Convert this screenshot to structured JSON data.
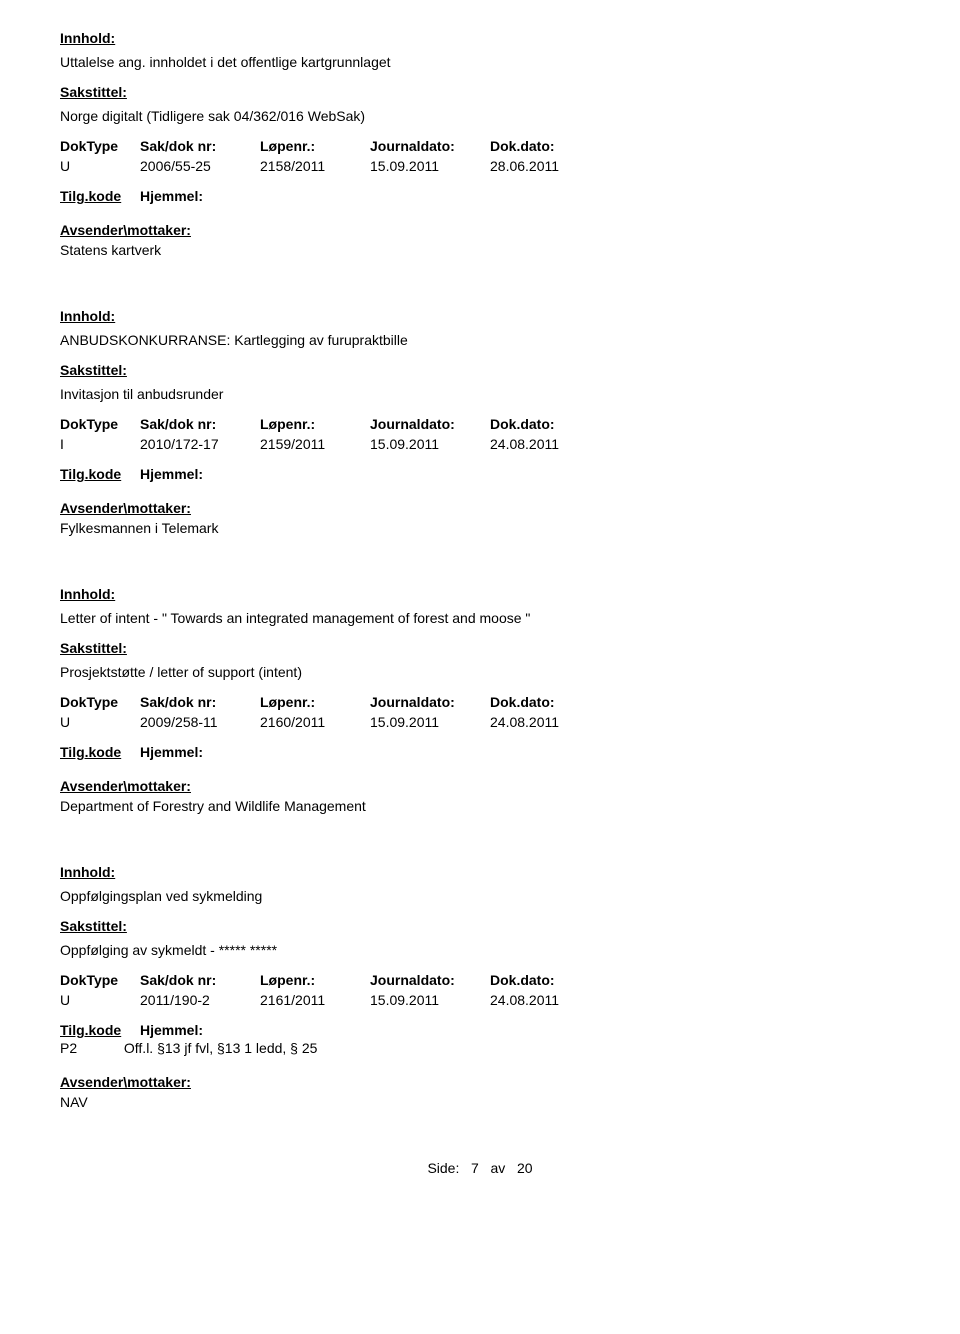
{
  "labels": {
    "innhold": "Innhold:",
    "sakstittel": "Sakstittel:",
    "doktype": "DokType",
    "sakdok": "Sak/dok nr:",
    "lopenr": "Løpenr.:",
    "journaldato": "Journaldato:",
    "dokdato": "Dok.dato:",
    "tilgkode": "Tilg.kode",
    "hjemmel": "Hjemmel:",
    "avsender": "Avsender\\mottaker:"
  },
  "entries": [
    {
      "innhold_text": "Uttalelse ang. innholdet i det offentlige kartgrunnlaget",
      "sakstittel_text": "Norge digitalt (Tidligere sak 04/362/016 WebSak)",
      "doktype": "U",
      "sakdok": "2006/55-25",
      "lopenr": "2158/2011",
      "journaldato": "15.09.2011",
      "dokdato": "28.06.2011",
      "ref": "",
      "avsender_text": "Statens kartverk"
    },
    {
      "innhold_text": "ANBUDSKONKURRANSE: Kartlegging av furupraktbille",
      "sakstittel_text": "Invitasjon til anbudsrunder",
      "doktype": "I",
      "sakdok": "2010/172-17",
      "lopenr": "2159/2011",
      "journaldato": "15.09.2011",
      "dokdato": "24.08.2011",
      "ref": "",
      "avsender_text": "Fylkesmannen i Telemark"
    },
    {
      "innhold_text": "Letter of intent - \" Towards an integrated management of forest and moose \"",
      "sakstittel_text": "Prosjektstøtte / letter of support (intent)",
      "doktype": "U",
      "sakdok": "2009/258-11",
      "lopenr": "2160/2011",
      "journaldato": "15.09.2011",
      "dokdato": "24.08.2011",
      "ref": "",
      "avsender_text": "Department of Forestry and Wildlife Management"
    },
    {
      "innhold_text": "Oppfølgingsplan ved sykmelding",
      "sakstittel_text": "Oppfølging av sykmeldt - ***** *****",
      "doktype": "U",
      "sakdok": "2011/190-2",
      "lopenr": "2161/2011",
      "journaldato": "15.09.2011",
      "dokdato": "24.08.2011",
      "ref_code": "P2",
      "ref": "Off.l. §13 jf fvl, §13 1 ledd, § 25",
      "avsender_text": "NAV"
    }
  ],
  "footer": {
    "side_label": "Side:",
    "page": "7",
    "av": "av",
    "total": "20"
  }
}
